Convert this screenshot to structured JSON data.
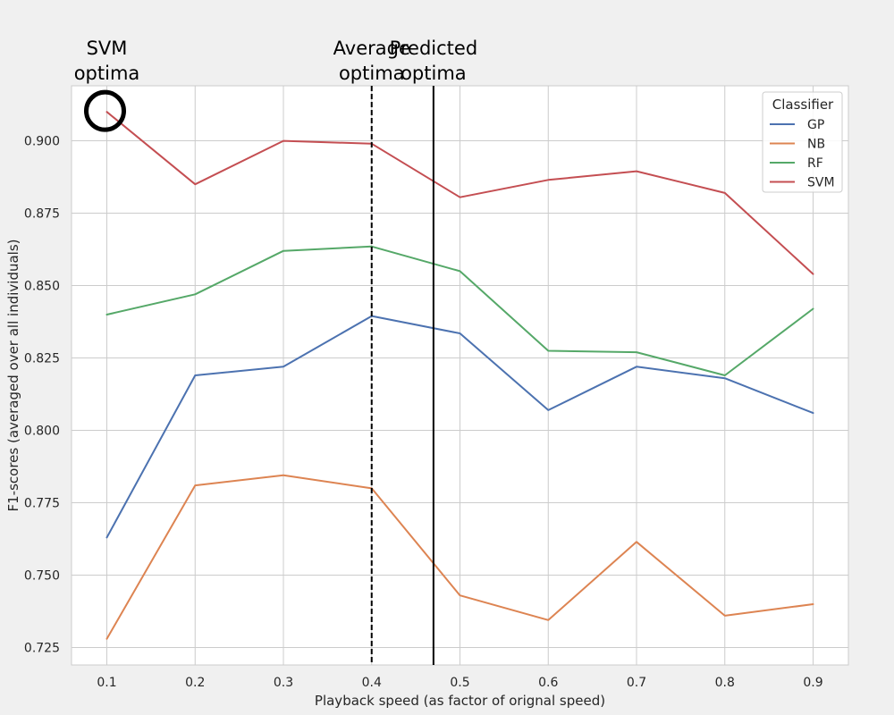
{
  "chart_data": {
    "type": "line",
    "title": "",
    "xlabel": "Playback speed (as factor of orignal speed)",
    "ylabel": "F1-scores (averaged over all individuals)",
    "x": [
      0.1,
      0.2,
      0.3,
      0.4,
      0.5,
      0.6,
      0.7,
      0.8,
      0.9
    ],
    "xticks": [
      "0.1",
      "0.2",
      "0.3",
      "0.4",
      "0.5",
      "0.6",
      "0.7",
      "0.8",
      "0.9"
    ],
    "yticks": [
      "0.725",
      "0.750",
      "0.775",
      "0.800",
      "0.825",
      "0.850",
      "0.875",
      "0.900"
    ],
    "xlim": [
      0.06,
      0.94
    ],
    "ylim": [
      0.719,
      0.919
    ],
    "grid": true,
    "legend": {
      "title": "Classifier",
      "placement": "top-right"
    },
    "series": [
      {
        "name": "GP",
        "color": "#4c72b0",
        "values": [
          0.763,
          0.819,
          0.822,
          0.8395,
          0.8335,
          0.807,
          0.822,
          0.818,
          0.806
        ]
      },
      {
        "name": "NB",
        "color": "#dd8452",
        "values": [
          0.728,
          0.781,
          0.7845,
          0.78,
          0.743,
          0.7345,
          0.7615,
          0.736,
          0.74
        ]
      },
      {
        "name": "RF",
        "color": "#55a868",
        "values": [
          0.84,
          0.847,
          0.862,
          0.8635,
          0.855,
          0.8275,
          0.827,
          0.819,
          0.842
        ]
      },
      {
        "name": "SVM",
        "color": "#c44e52",
        "values": [
          0.91,
          0.885,
          0.9,
          0.899,
          0.8805,
          0.8865,
          0.8895,
          0.882,
          0.854
        ]
      }
    ],
    "annotations": [
      {
        "text_lines": [
          "SVM",
          "optima"
        ],
        "x": 0.1,
        "marker": "circle",
        "marker_y": 0.91
      },
      {
        "text_lines": [
          "Average",
          "optima"
        ],
        "x": 0.4,
        "line": "dashed"
      },
      {
        "text_lines": [
          "Predicted",
          "optima"
        ],
        "x": 0.47,
        "line": "solid"
      }
    ]
  }
}
